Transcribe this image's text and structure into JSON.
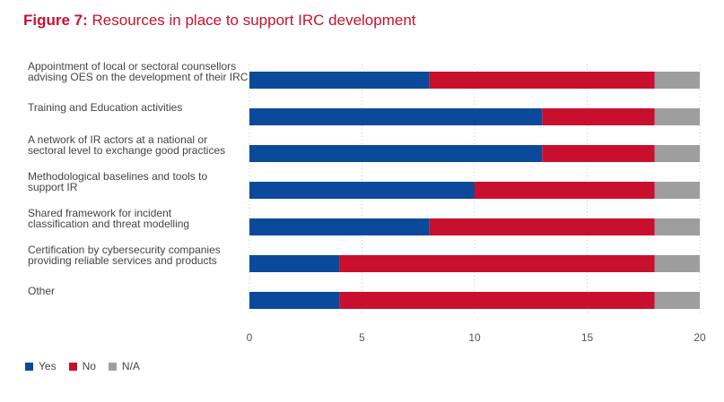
{
  "figure": {
    "label": "Figure 7:",
    "title": "Resources in place to support IRC development"
  },
  "chart_data": {
    "type": "bar",
    "orientation": "horizontal",
    "stacked": true,
    "categories": [
      [
        "Appointment of local or sectoral counsellors",
        "advising OES on the development of their IRC"
      ],
      [
        "Training and Education activities"
      ],
      [
        "A network of IR actors at a national or",
        "sectoral level to exchange good practices"
      ],
      [
        "Methodological baselines and tools to",
        "support IR"
      ],
      [
        "Shared framework for incident",
        "classification and threat modelling"
      ],
      [
        "Certification by cybersecurity companies",
        "providing reliable services and products"
      ],
      [
        "Other"
      ]
    ],
    "series": [
      {
        "name": "Yes",
        "color": "#0b4a9b",
        "values": [
          8,
          13,
          13,
          10,
          8,
          4,
          4
        ]
      },
      {
        "name": "No",
        "color": "#c8102e",
        "values": [
          10,
          5,
          5,
          8,
          10,
          14,
          14
        ]
      },
      {
        "name": "N/A",
        "color": "#9e9e9e",
        "values": [
          2,
          2,
          2,
          2,
          2,
          2,
          2
        ]
      }
    ],
    "xlim": [
      0,
      20
    ],
    "xticks": [
      0,
      5,
      10,
      15,
      20
    ],
    "grid": "vertical dotted",
    "legend_position": "bottom-left"
  }
}
